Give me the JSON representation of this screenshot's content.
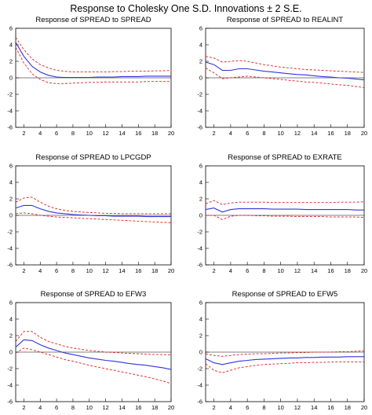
{
  "figure_title": "Response to Cholesky One S.D. Innovations ± 2 S.E.",
  "colors": {
    "response": "#3333dd",
    "bands": "#e02020",
    "axes": "#555555"
  },
  "chart_data": [
    {
      "type": "line",
      "title": "Response of SPREAD to SPREAD",
      "ylim": [
        -6,
        6
      ],
      "yticks": [
        -6,
        -4,
        -2,
        0,
        2,
        4,
        6
      ],
      "xlim": [
        1,
        20
      ],
      "xticks": [
        2,
        4,
        6,
        8,
        10,
        12,
        14,
        16,
        18,
        20
      ],
      "x": [
        1,
        2,
        3,
        4,
        5,
        6,
        7,
        8,
        9,
        10,
        11,
        12,
        13,
        14,
        15,
        16,
        17,
        18,
        19,
        20
      ],
      "grid": false,
      "legend": "none",
      "series": [
        {
          "role": "response",
          "values": [
            4.3,
            2.6,
            1.4,
            0.7,
            0.3,
            0.1,
            0.05,
            0.05,
            0.05,
            0.05,
            0.1,
            0.1,
            0.1,
            0.15,
            0.15,
            0.15,
            0.2,
            0.2,
            0.2,
            0.2
          ]
        },
        {
          "role": "upper",
          "values": [
            4.9,
            3.4,
            2.3,
            1.6,
            1.2,
            0.9,
            0.8,
            0.7,
            0.7,
            0.7,
            0.7,
            0.7,
            0.75,
            0.75,
            0.8,
            0.8,
            0.8,
            0.85,
            0.85,
            0.9
          ]
        },
        {
          "role": "lower",
          "values": [
            3.7,
            1.8,
            0.5,
            -0.2,
            -0.6,
            -0.7,
            -0.7,
            -0.65,
            -0.6,
            -0.55,
            -0.55,
            -0.5,
            -0.5,
            -0.5,
            -0.5,
            -0.5,
            -0.45,
            -0.45,
            -0.45,
            -0.45
          ]
        }
      ]
    },
    {
      "type": "line",
      "title": "Response of SPREAD to REALINT",
      "ylim": [
        -6,
        6
      ],
      "yticks": [
        -6,
        -4,
        -2,
        0,
        2,
        4,
        6
      ],
      "xlim": [
        1,
        20
      ],
      "xticks": [
        2,
        4,
        6,
        8,
        10,
        12,
        14,
        16,
        18,
        20
      ],
      "x": [
        1,
        2,
        3,
        4,
        5,
        6,
        7,
        8,
        9,
        10,
        11,
        12,
        13,
        14,
        15,
        16,
        17,
        18,
        19,
        20
      ],
      "grid": false,
      "legend": "none",
      "series": [
        {
          "role": "response",
          "values": [
            1.9,
            1.6,
            0.9,
            0.9,
            1.1,
            1.1,
            0.95,
            0.8,
            0.7,
            0.6,
            0.5,
            0.4,
            0.35,
            0.25,
            0.15,
            0.1,
            0.0,
            -0.05,
            -0.15,
            -0.25
          ]
        },
        {
          "role": "upper",
          "values": [
            2.6,
            2.4,
            1.9,
            2.0,
            2.1,
            2.0,
            1.8,
            1.6,
            1.45,
            1.3,
            1.2,
            1.1,
            1.0,
            0.95,
            0.9,
            0.85,
            0.8,
            0.75,
            0.7,
            0.65
          ]
        },
        {
          "role": "lower",
          "values": [
            1.2,
            0.6,
            -0.1,
            0.0,
            0.1,
            0.2,
            0.1,
            0.0,
            -0.1,
            -0.2,
            -0.3,
            -0.4,
            -0.5,
            -0.55,
            -0.65,
            -0.75,
            -0.85,
            -0.9,
            -1.05,
            -1.2
          ]
        }
      ]
    },
    {
      "type": "line",
      "title": "Response of SPREAD to LPCGDP",
      "ylim": [
        -6,
        6
      ],
      "yticks": [
        -6,
        -4,
        -2,
        0,
        2,
        4,
        6
      ],
      "xlim": [
        1,
        20
      ],
      "xticks": [
        2,
        4,
        6,
        8,
        10,
        12,
        14,
        16,
        18,
        20
      ],
      "x": [
        1,
        2,
        3,
        4,
        5,
        6,
        7,
        8,
        9,
        10,
        11,
        12,
        13,
        14,
        15,
        16,
        17,
        18,
        19,
        20
      ],
      "grid": false,
      "legend": "none",
      "series": [
        {
          "role": "response",
          "values": [
            0.9,
            1.2,
            1.2,
            0.8,
            0.5,
            0.3,
            0.2,
            0.1,
            0.05,
            0.0,
            -0.05,
            -0.05,
            -0.1,
            -0.1,
            -0.1,
            -0.1,
            -0.15,
            -0.15,
            -0.15,
            -0.15
          ]
        },
        {
          "role": "upper",
          "values": [
            1.6,
            2.1,
            2.2,
            1.6,
            1.1,
            0.8,
            0.6,
            0.5,
            0.4,
            0.35,
            0.3,
            0.25,
            0.25,
            0.2,
            0.2,
            0.2,
            0.2,
            0.2,
            0.2,
            0.2
          ]
        },
        {
          "role": "lower",
          "values": [
            0.2,
            0.3,
            0.2,
            0.0,
            -0.1,
            -0.2,
            -0.25,
            -0.3,
            -0.35,
            -0.4,
            -0.45,
            -0.5,
            -0.55,
            -0.6,
            -0.65,
            -0.7,
            -0.75,
            -0.8,
            -0.85,
            -0.9
          ]
        }
      ]
    },
    {
      "type": "line",
      "title": "Response of SPREAD to EXRATE",
      "ylim": [
        -6,
        6
      ],
      "yticks": [
        -6,
        -4,
        -2,
        0,
        2,
        4,
        6
      ],
      "xlim": [
        1,
        20
      ],
      "xticks": [
        2,
        4,
        6,
        8,
        10,
        12,
        14,
        16,
        18,
        20
      ],
      "x": [
        1,
        2,
        3,
        4,
        5,
        6,
        7,
        8,
        9,
        10,
        11,
        12,
        13,
        14,
        15,
        16,
        17,
        18,
        19,
        20
      ],
      "grid": false,
      "legend": "none",
      "series": [
        {
          "role": "response",
          "values": [
            0.7,
            0.9,
            0.4,
            0.7,
            0.8,
            0.8,
            0.8,
            0.8,
            0.75,
            0.75,
            0.75,
            0.75,
            0.7,
            0.7,
            0.7,
            0.7,
            0.7,
            0.7,
            0.65,
            0.65
          ]
        },
        {
          "role": "upper",
          "values": [
            1.4,
            1.8,
            1.3,
            1.5,
            1.6,
            1.6,
            1.6,
            1.6,
            1.55,
            1.55,
            1.55,
            1.55,
            1.55,
            1.55,
            1.55,
            1.55,
            1.6,
            1.6,
            1.6,
            1.65
          ]
        },
        {
          "role": "lower",
          "values": [
            0.0,
            0.0,
            -0.5,
            -0.1,
            0.0,
            0.0,
            -0.05,
            -0.05,
            -0.1,
            -0.1,
            -0.1,
            -0.15,
            -0.15,
            -0.15,
            -0.15,
            -0.2,
            -0.2,
            -0.2,
            -0.2,
            -0.25
          ]
        }
      ]
    },
    {
      "type": "line",
      "title": "Response of SPREAD to EFW3",
      "ylim": [
        -6,
        6
      ],
      "yticks": [
        -6,
        -4,
        -2,
        0,
        2,
        4,
        6
      ],
      "xlim": [
        1,
        20
      ],
      "xticks": [
        2,
        4,
        6,
        8,
        10,
        12,
        14,
        16,
        18,
        20
      ],
      "x": [
        1,
        2,
        3,
        4,
        5,
        6,
        7,
        8,
        9,
        10,
        11,
        12,
        13,
        14,
        15,
        16,
        17,
        18,
        19,
        20
      ],
      "grid": false,
      "legend": "none",
      "series": [
        {
          "role": "response",
          "values": [
            0.6,
            1.5,
            1.4,
            0.9,
            0.5,
            0.2,
            -0.1,
            -0.3,
            -0.5,
            -0.7,
            -0.85,
            -1.0,
            -1.1,
            -1.25,
            -1.4,
            -1.5,
            -1.6,
            -1.75,
            -1.9,
            -2.1
          ]
        },
        {
          "role": "upper",
          "values": [
            1.3,
            2.5,
            2.5,
            1.8,
            1.3,
            1.0,
            0.7,
            0.5,
            0.35,
            0.2,
            0.1,
            0.0,
            -0.05,
            -0.1,
            -0.15,
            -0.2,
            -0.25,
            -0.3,
            -0.3,
            -0.35
          ]
        },
        {
          "role": "lower",
          "values": [
            -0.1,
            0.5,
            0.3,
            0.0,
            -0.3,
            -0.6,
            -0.9,
            -1.1,
            -1.35,
            -1.6,
            -1.8,
            -2.0,
            -2.2,
            -2.4,
            -2.6,
            -2.8,
            -3.0,
            -3.25,
            -3.5,
            -3.8
          ]
        }
      ]
    },
    {
      "type": "line",
      "title": "Response of SPREAD to EFW5",
      "ylim": [
        -6,
        6
      ],
      "yticks": [
        -6,
        -4,
        -2,
        0,
        2,
        4,
        6
      ],
      "xlim": [
        1,
        20
      ],
      "xticks": [
        2,
        4,
        6,
        8,
        10,
        12,
        14,
        16,
        18,
        20
      ],
      "x": [
        1,
        2,
        3,
        4,
        5,
        6,
        7,
        8,
        9,
        10,
        11,
        12,
        13,
        14,
        15,
        16,
        17,
        18,
        19,
        20
      ],
      "grid": false,
      "legend": "none",
      "series": [
        {
          "role": "response",
          "values": [
            -0.8,
            -1.3,
            -1.5,
            -1.3,
            -1.1,
            -1.0,
            -0.9,
            -0.85,
            -0.8,
            -0.75,
            -0.7,
            -0.7,
            -0.65,
            -0.65,
            -0.6,
            -0.6,
            -0.6,
            -0.55,
            -0.55,
            -0.55
          ]
        },
        {
          "role": "upper",
          "values": [
            -0.2,
            -0.4,
            -0.5,
            -0.4,
            -0.3,
            -0.25,
            -0.2,
            -0.2,
            -0.15,
            -0.1,
            -0.1,
            -0.05,
            -0.05,
            0.0,
            0.0,
            0.0,
            0.05,
            0.05,
            0.1,
            0.15
          ]
        },
        {
          "role": "lower",
          "values": [
            -1.4,
            -2.2,
            -2.5,
            -2.2,
            -1.9,
            -1.75,
            -1.6,
            -1.5,
            -1.45,
            -1.4,
            -1.35,
            -1.3,
            -1.3,
            -1.25,
            -1.25,
            -1.2,
            -1.2,
            -1.2,
            -1.2,
            -1.2
          ]
        }
      ]
    }
  ]
}
